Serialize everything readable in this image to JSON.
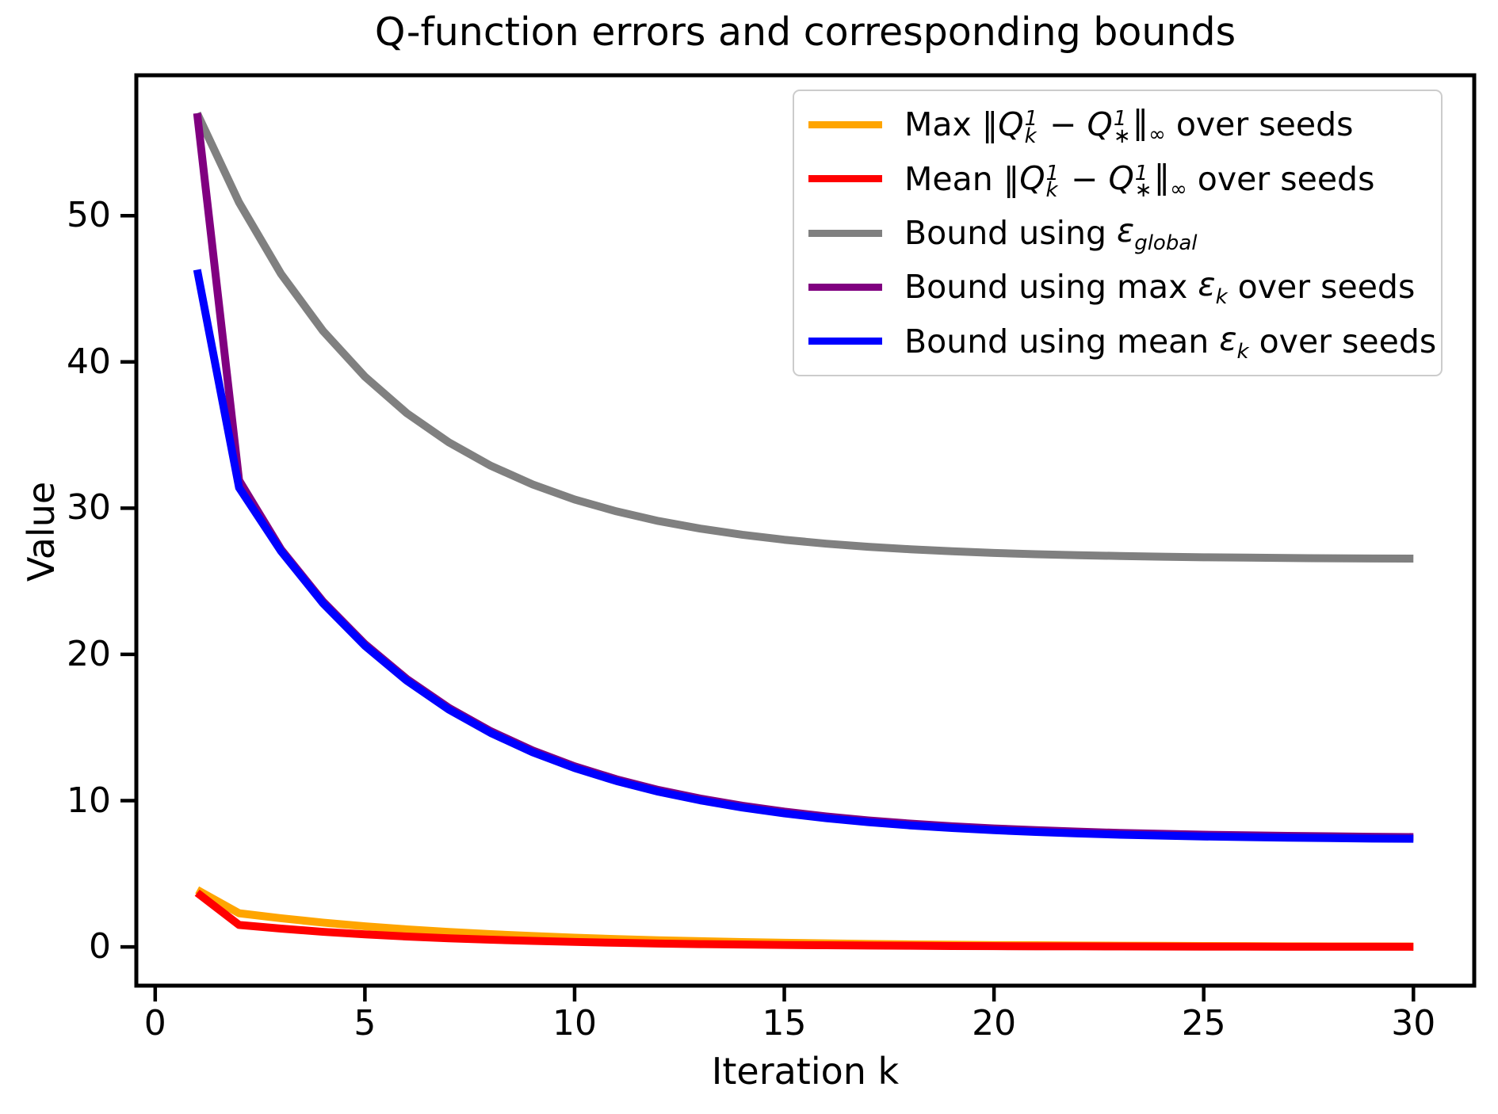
{
  "chart_data": {
    "type": "line",
    "title": "Q-function errors and corresponding bounds",
    "xlabel": "Iteration k",
    "ylabel": "Value",
    "grid": false,
    "legend_position": "upper right",
    "xlim": [
      -0.45,
      31.45
    ],
    "ylim": [
      -2.65,
      59.6
    ],
    "x_ticks": [
      0,
      5,
      10,
      15,
      20,
      25,
      30
    ],
    "y_ticks": [
      0,
      10,
      20,
      30,
      40,
      50
    ],
    "x": [
      1,
      2,
      3,
      4,
      5,
      6,
      7,
      8,
      9,
      10,
      11,
      12,
      13,
      14,
      15,
      16,
      17,
      18,
      19,
      20,
      21,
      22,
      23,
      24,
      25,
      26,
      27,
      28,
      29,
      30
    ],
    "series": [
      {
        "key": "max-error",
        "name": "Max ||Q_k^1 - Q_*^1||_inf over seeds",
        "color": "#FFA500",
        "values": [
          3.9,
          2.3,
          1.96,
          1.66,
          1.41,
          1.2,
          1.02,
          0.87,
          0.74,
          0.63,
          0.53,
          0.45,
          0.39,
          0.33,
          0.28,
          0.24,
          0.2,
          0.17,
          0.15,
          0.12,
          0.11,
          0.09,
          0.08,
          0.07,
          0.06,
          0.05,
          0.04,
          0.035,
          0.03,
          0.025
        ]
      },
      {
        "key": "mean-error",
        "name": "Mean ||Q_k^1 - Q_*^1||_inf over seeds",
        "color": "#FF0000",
        "values": [
          3.7,
          1.5,
          1.25,
          1.03,
          0.86,
          0.71,
          0.59,
          0.49,
          0.41,
          0.34,
          0.28,
          0.23,
          0.19,
          0.16,
          0.13,
          0.11,
          0.09,
          0.08,
          0.06,
          0.05,
          0.04,
          0.04,
          0.03,
          0.025,
          0.02,
          0.017,
          0.014,
          0.012,
          0.01,
          0.008
        ]
      },
      {
        "key": "bound-global",
        "name": "Bound using eps_global",
        "color": "#808080",
        "values": [
          57.0,
          50.9,
          46.02,
          42.12,
          38.99,
          36.49,
          34.5,
          32.9,
          31.62,
          30.59,
          29.78,
          29.12,
          28.6,
          28.18,
          27.84,
          27.57,
          27.36,
          27.19,
          27.05,
          26.94,
          26.85,
          26.78,
          26.73,
          26.68,
          26.64,
          26.62,
          26.59,
          26.57,
          26.56,
          26.55
        ]
      },
      {
        "key": "bound-max",
        "name": "Bound using max eps_k over seeds",
        "color": "#800080",
        "values": [
          57.0,
          31.9,
          27.18,
          23.62,
          20.71,
          18.32,
          16.35,
          14.75,
          13.43,
          12.35,
          11.46,
          10.73,
          10.14,
          9.65,
          9.25,
          8.92,
          8.65,
          8.43,
          8.25,
          8.1,
          7.98,
          7.88,
          7.79,
          7.73,
          7.67,
          7.63,
          7.59,
          7.56,
          7.53,
          7.51
        ]
      },
      {
        "key": "bound-mean",
        "name": "Bound using mean eps_k over seeds",
        "color": "#0000FF",
        "values": [
          46.3,
          31.4,
          27.06,
          23.5,
          20.59,
          18.2,
          16.23,
          14.63,
          13.31,
          12.23,
          11.34,
          10.61,
          10.02,
          9.53,
          9.13,
          8.8,
          8.53,
          8.31,
          8.13,
          7.98,
          7.86,
          7.76,
          7.67,
          7.61,
          7.55,
          7.51,
          7.47,
          7.44,
          7.41,
          7.39
        ]
      }
    ]
  },
  "legend": {
    "items": [
      {
        "color": "#FFA500",
        "frags": [
          {
            "v": "Max ‖"
          },
          {
            "v": "Q",
            "i": 1,
            "sup": "1",
            "sub": "k",
            "subI": 1
          },
          {
            "v": " − "
          },
          {
            "v": "Q",
            "i": 1,
            "sup": "1",
            "sub": "∗"
          },
          {
            "v": "‖",
            "sub": "∞"
          },
          {
            "v": " over seeds"
          }
        ]
      },
      {
        "color": "#FF0000",
        "frags": [
          {
            "v": "Mean ‖"
          },
          {
            "v": "Q",
            "i": 1,
            "sup": "1",
            "sub": "k",
            "subI": 1
          },
          {
            "v": " − "
          },
          {
            "v": "Q",
            "i": 1,
            "sup": "1",
            "sub": "∗"
          },
          {
            "v": "‖",
            "sub": "∞"
          },
          {
            "v": " over seeds"
          }
        ]
      },
      {
        "color": "#808080",
        "frags": [
          {
            "v": "Bound using "
          },
          {
            "v": "ε",
            "i": 1,
            "sub": "global"
          }
        ]
      },
      {
        "color": "#800080",
        "frags": [
          {
            "v": "Bound using max "
          },
          {
            "v": "ε",
            "i": 1,
            "sub": "k",
            "subI": 1
          },
          {
            "v": " over seeds"
          }
        ]
      },
      {
        "color": "#0000FF",
        "frags": [
          {
            "v": "Bound using mean "
          },
          {
            "v": "ε",
            "i": 1,
            "sub": "k",
            "subI": 1
          },
          {
            "v": " over seeds"
          }
        ]
      }
    ]
  }
}
